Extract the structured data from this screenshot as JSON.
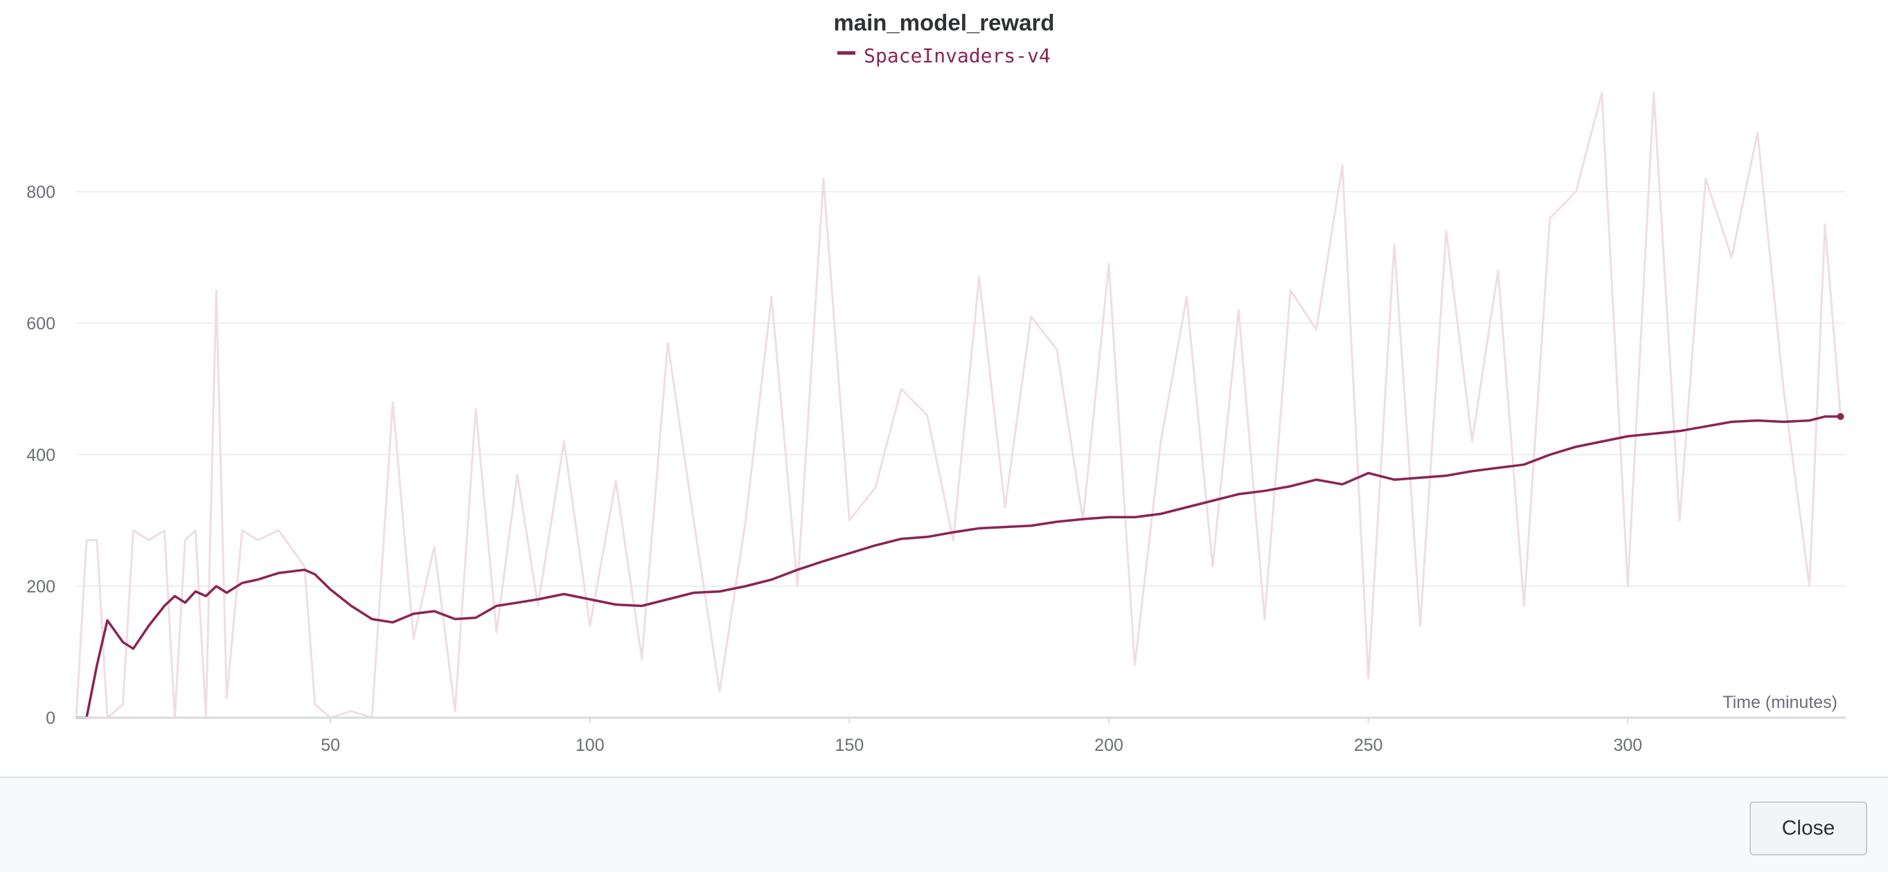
{
  "chart_data": {
    "type": "line",
    "title": "main_model_reward",
    "xlabel": "Time (minutes)",
    "ylabel": "",
    "xlim": [
      1,
      342
    ],
    "ylim": [
      0,
      950
    ],
    "x_ticks": [
      50,
      100,
      150,
      200,
      250,
      300
    ],
    "y_ticks": [
      0,
      200,
      400,
      600,
      800
    ],
    "grid": true,
    "legend": "top-center",
    "series": [
      {
        "name": "SpaceInvaders-v4",
        "color": "#8b2454",
        "raw_color": "#f0dde4",
        "x": [
          1,
          3,
          5,
          7,
          10,
          12,
          15,
          18,
          20,
          22,
          24,
          26,
          28,
          30,
          33,
          36,
          40,
          45,
          47,
          50,
          54,
          58,
          62,
          66,
          70,
          74,
          78,
          82,
          86,
          90,
          95,
          100,
          105,
          110,
          115,
          120,
          125,
          130,
          135,
          140,
          145,
          150,
          155,
          160,
          165,
          170,
          175,
          180,
          185,
          190,
          195,
          200,
          205,
          210,
          215,
          220,
          225,
          230,
          235,
          240,
          245,
          250,
          255,
          260,
          265,
          270,
          275,
          280,
          285,
          290,
          295,
          300,
          305,
          310,
          315,
          320,
          325,
          330,
          335,
          338,
          341
        ],
        "smoothed": [
          0,
          0,
          80,
          148,
          115,
          105,
          140,
          170,
          185,
          175,
          192,
          185,
          200,
          190,
          205,
          210,
          220,
          225,
          218,
          195,
          170,
          150,
          145,
          158,
          162,
          150,
          152,
          170,
          175,
          180,
          188,
          180,
          172,
          170,
          180,
          190,
          192,
          200,
          210,
          225,
          238,
          250,
          262,
          272,
          275,
          282,
          288,
          290,
          292,
          298,
          302,
          305,
          305,
          310,
          320,
          330,
          340,
          345,
          352,
          362,
          355,
          372,
          362,
          365,
          368,
          375,
          380,
          385,
          400,
          412,
          420,
          428,
          432,
          436,
          443,
          450,
          452,
          450,
          452,
          458,
          458
        ],
        "raw": [
          0,
          270,
          270,
          0,
          20,
          285,
          270,
          285,
          0,
          270,
          285,
          0,
          650,
          30,
          285,
          270,
          285,
          230,
          20,
          0,
          10,
          0,
          480,
          120,
          260,
          10,
          470,
          130,
          370,
          170,
          420,
          140,
          360,
          90,
          570,
          300,
          40,
          300,
          640,
          200,
          820,
          300,
          350,
          500,
          460,
          270,
          670,
          320,
          610,
          560,
          300,
          690,
          80,
          420,
          640,
          230,
          620,
          150,
          650,
          590,
          840,
          60,
          720,
          140,
          740,
          420,
          680,
          170,
          760,
          800,
          970,
          200,
          960,
          300,
          820,
          700,
          890,
          500,
          200,
          750,
          460
        ]
      }
    ]
  },
  "footer": {
    "close_label": "Close"
  }
}
